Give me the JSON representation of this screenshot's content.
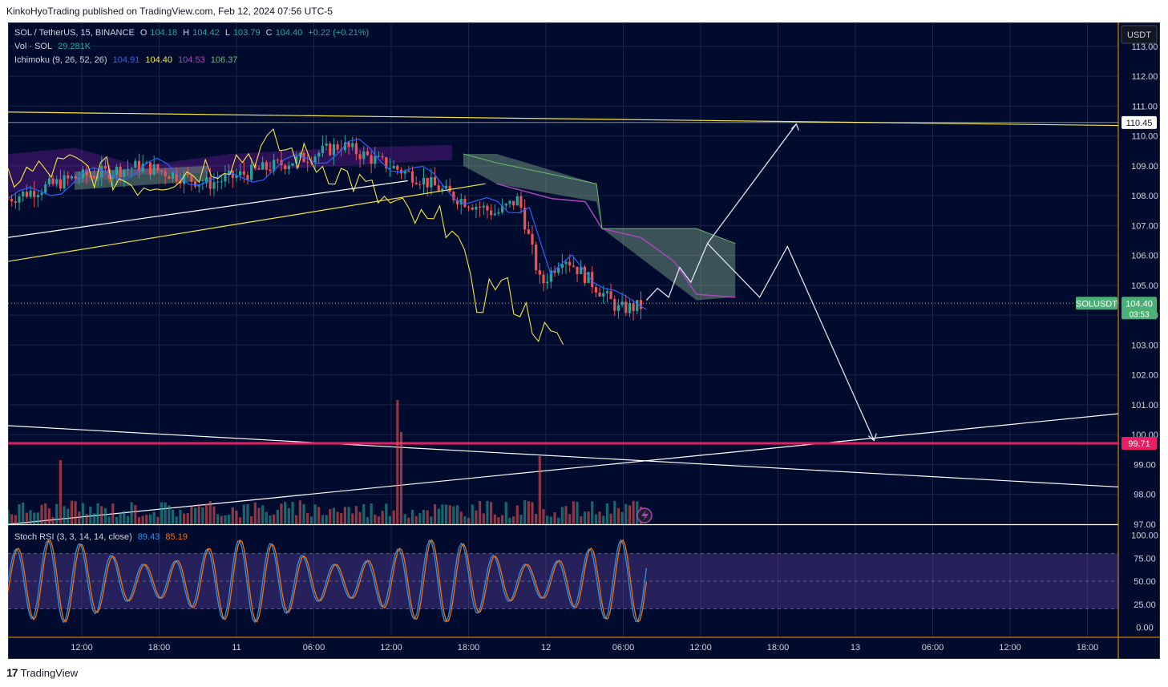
{
  "publisher_bar": "KinkoHyoTrading published on TradingView.com, Feb 12, 2024 07:56 UTC-5",
  "footer": {
    "logo": "17",
    "label": "TradingView"
  },
  "legend": {
    "symbol": "SOL / TetherUS, 15, BINANCE",
    "o_label": "O",
    "o": "104.18",
    "h_label": "H",
    "h": "104.42",
    "l_label": "L",
    "l": "103.79",
    "c_label": "C",
    "c": "104.40",
    "change": "+0.22 (+0.21%)",
    "vol_label": "Vol · SOL",
    "vol": "29.281K",
    "ichimoku_label": "Ichimoku (9, 26, 52, 26)",
    "ichi_values": [
      "104.91",
      "104.40",
      "104.53",
      "106.37"
    ],
    "stoch_label": "Stoch RSI (3, 3, 14, 14, close)",
    "stoch_k": "89.43",
    "stoch_d": "85.19"
  },
  "axis_badges": {
    "currency": "USDT",
    "level_high": "110.45",
    "level_support": "99.71",
    "symbol_tag": "SOLUSDT",
    "last_price": "104.40",
    "countdown": "03:53"
  },
  "colors": {
    "background": "#010b2e",
    "bull": "#26a69a",
    "bear": "#ef5350",
    "tenkan": "#2962ff",
    "kijun": "#f5e642",
    "chikou": "#f5e642",
    "cloud_bull": "#a5d6a7",
    "cloud_bear": "#7b1fa2",
    "support_line": "#e91e63",
    "stoch_k": "#2196f3",
    "stoch_d": "#ff6d00",
    "stoch_band": "#7e57c2"
  },
  "chart_data": {
    "type": "candlestick",
    "symbol": "SOLUSDT",
    "interval": "15",
    "y_axis_ticks": [
      "113.00",
      "112.00",
      "111.00",
      "110.00",
      "109.00",
      "108.00",
      "107.00",
      "106.00",
      "105.00",
      "104.00",
      "103.00",
      "102.00",
      "101.00",
      "100.00",
      "99.00",
      "98.00",
      "97.00"
    ],
    "x_axis_ticks": [
      "12:00",
      "18:00",
      "11",
      "06:00",
      "12:00",
      "18:00",
      "12",
      "06:00",
      "12:00",
      "18:00",
      "13",
      "06:00",
      "12:00",
      "18:00"
    ],
    "stoch_ticks": [
      "100.00",
      "75.00",
      "50.00",
      "25.00",
      "0.00"
    ],
    "ylim": [
      97,
      113.8
    ],
    "stoch_ylim": [
      -10,
      110
    ],
    "stoch_bands": [
      20,
      50,
      80
    ],
    "last_price": 104.4,
    "horizontal_levels": [
      {
        "value": 110.45,
        "label": "110.45"
      },
      {
        "value": 99.71,
        "label": "99.71"
      }
    ],
    "trend_lines": [
      {
        "name": "yellow-resistance",
        "points": [
          [
            0,
            110.8
          ],
          [
            1.0,
            110.35
          ]
        ]
      },
      {
        "name": "white-channel-lower",
        "points": [
          [
            0,
            106.6
          ],
          [
            0.36,
            108.5
          ]
        ]
      },
      {
        "name": "yellow-channel-lower",
        "points": [
          [
            0,
            105.8
          ],
          [
            0.43,
            108.4
          ]
        ]
      },
      {
        "name": "white-descending",
        "points": [
          [
            0,
            100.3
          ],
          [
            1.0,
            98.25
          ]
        ]
      },
      {
        "name": "white-ascending",
        "points": [
          [
            0,
            97.0
          ],
          [
            1.0,
            100.7
          ]
        ]
      }
    ],
    "projection_path": [
      [
        0.575,
        104.5
      ],
      [
        0.585,
        104.9
      ],
      [
        0.595,
        104.6
      ],
      [
        0.605,
        105.6
      ],
      [
        0.615,
        105.1
      ],
      [
        0.63,
        106.4
      ],
      [
        0.677,
        104.6
      ],
      [
        0.702,
        106.3
      ],
      [
        0.78,
        99.8
      ]
    ],
    "projection_path_alt": [
      [
        0.63,
        106.4
      ],
      [
        0.71,
        110.4
      ]
    ]
  }
}
